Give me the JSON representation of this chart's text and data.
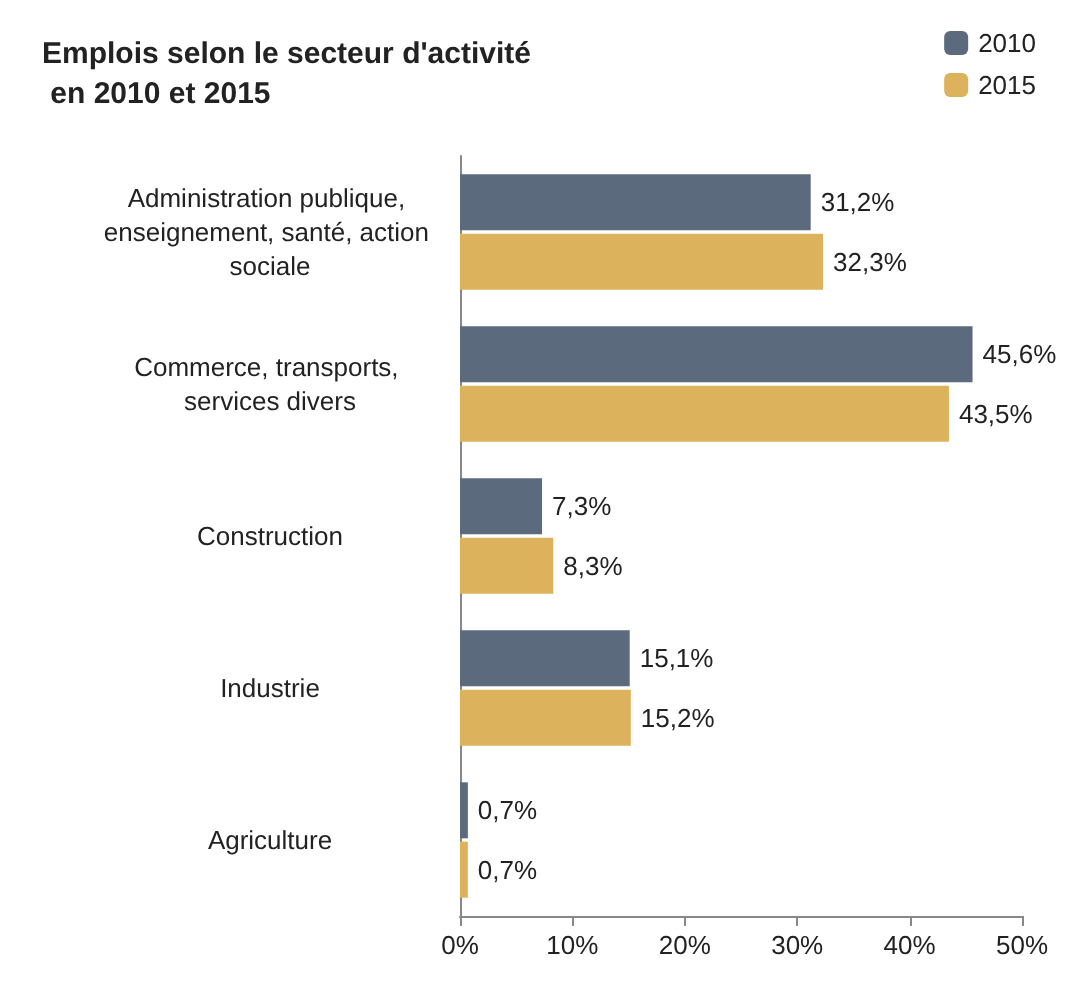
{
  "chart_data": {
    "type": "bar",
    "orientation": "horizontal",
    "title": "Emplois selon le secteur d'activité en 2010 et 2015",
    "categories": [
      "Administration publique, enseignement, santé, action sociale",
      "Commerce, transports, services divers",
      "Construction",
      "Industrie",
      "Agriculture"
    ],
    "series": [
      {
        "name": "2010",
        "color": "#5b6a7c",
        "values": [
          31.2,
          45.6,
          7.3,
          15.1,
          0.7
        ],
        "value_labels": [
          "31,2%",
          "45,6%",
          "7,3%",
          "15,1%",
          "0,7%"
        ]
      },
      {
        "name": "2015",
        "color": "#ddb25c",
        "values": [
          32.3,
          43.5,
          8.3,
          15.2,
          0.7
        ],
        "value_labels": [
          "32,3%",
          "43,5%",
          "8,3%",
          "15,2%",
          "0,7%"
        ]
      }
    ],
    "xlim": [
      0,
      50
    ],
    "xticks": [
      {
        "value": 0,
        "label": "0%"
      },
      {
        "value": 10,
        "label": "10%"
      },
      {
        "value": 20,
        "label": "20%"
      },
      {
        "value": 30,
        "label": "30%"
      },
      {
        "value": 40,
        "label": "40%"
      },
      {
        "value": 50,
        "label": "50%"
      }
    ],
    "grid": false,
    "legend": "top right"
  }
}
